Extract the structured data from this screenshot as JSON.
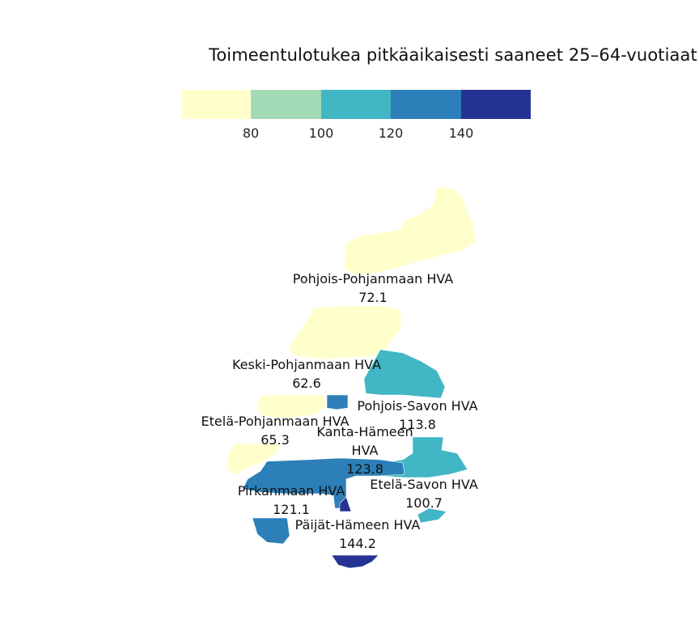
{
  "title": "Toimeentulotukea pitkäaikaisesti saaneet 25–64-vuotiaat",
  "legend": {
    "colors": [
      "#ffffcc",
      "#a1dab4",
      "#41b6c4",
      "#2c7fb8",
      "#253494"
    ],
    "ticks": [
      "80",
      "100",
      "120",
      "140"
    ]
  },
  "regions": [
    {
      "name": "Pohjois-Pohjanmaan HVA",
      "value": "72.1",
      "color": "#ffffcc"
    },
    {
      "name": "Keski-Pohjanmaan HVA",
      "value": "62.6",
      "color": "#ffffcc"
    },
    {
      "name": "Pohjois-Savon HVA",
      "value": "113.8",
      "color": "#41b6c4"
    },
    {
      "name": "Etelä-Pohjanmaan HVA",
      "value": "65.3",
      "color": "#ffffcc"
    },
    {
      "name": "Kanta-Hämeen HVA",
      "value": "123.8",
      "color": "#2c7fb8"
    },
    {
      "name": "Etelä-Savon HVA",
      "value": "100.7",
      "color": "#41b6c4"
    },
    {
      "name": "Pirkanmaan HVA",
      "value": "121.1",
      "color": "#2c7fb8"
    },
    {
      "name": "Päijät-Hämeen HVA",
      "value": "144.2",
      "color": "#253494"
    }
  ]
}
